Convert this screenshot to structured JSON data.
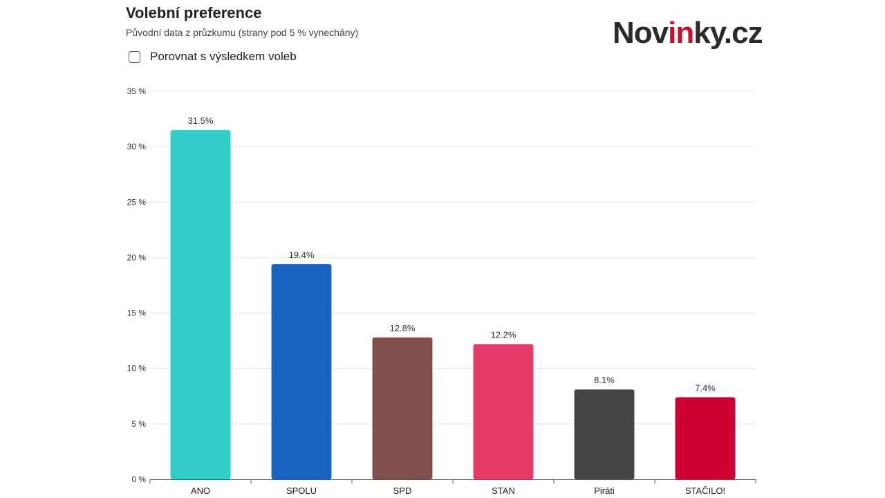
{
  "header": {
    "title": "Volební preference",
    "subtitle": "Původní data z průzkumu (strany pod 5 % vynechány)"
  },
  "compare_toggle": {
    "label": "Porovnat s výsledkem voleb",
    "checked": false
  },
  "logo": {
    "part1": "Nov",
    "part2": "in",
    "part3": "ky.cz",
    "accent_color": "#c8102e",
    "text_color": "#2b2b2b"
  },
  "chart_data": {
    "type": "bar",
    "categories": [
      "ANO",
      "SPOLU",
      "SPD",
      "STAN",
      "Piráti",
      "STAČILO!"
    ],
    "values": [
      31.5,
      19.4,
      12.8,
      12.2,
      8.1,
      7.4
    ],
    "value_labels": [
      "31.5%",
      "19.4%",
      "12.8%",
      "12.2%",
      "8.1%",
      "7.4%"
    ],
    "colors": [
      "#33cdc9",
      "#1763bf",
      "#824f4f",
      "#e63a68",
      "#454545",
      "#cc0033"
    ],
    "ylim": [
      0,
      35
    ],
    "yticks": [
      0,
      5,
      10,
      15,
      20,
      25,
      30,
      35
    ],
    "ytick_labels": [
      "0 %",
      "5 %",
      "10 %",
      "15 %",
      "20 %",
      "25 %",
      "30 %",
      "35 %"
    ],
    "grid": true,
    "title": "Volební preference",
    "xlabel": "",
    "ylabel": ""
  }
}
